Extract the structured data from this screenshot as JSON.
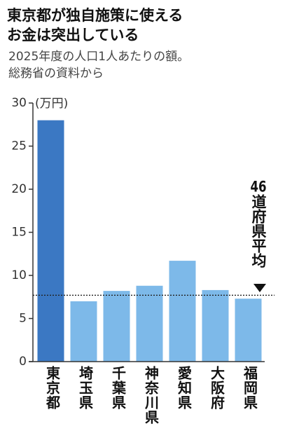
{
  "chart_data": {
    "type": "bar",
    "title": [
      "東京都が独自施策に使える",
      "お金は突出している"
    ],
    "subtitle": [
      "2025年度の人口1人あたりの額。",
      "総務省の資料から"
    ],
    "y_label": "(万円)",
    "categories": [
      "東京都",
      "埼玉県",
      "千葉県",
      "神奈川県",
      "愛知県",
      "大阪府",
      "福岡県"
    ],
    "values": [
      28,
      7.0,
      8.2,
      8.8,
      11.7,
      8.3,
      7.3
    ],
    "colors": [
      "#3b78c3",
      "#7db9e9",
      "#7db9e9",
      "#7db9e9",
      "#7db9e9",
      "#7db9e9",
      "#7db9e9"
    ],
    "ylim": [
      0,
      30
    ],
    "yticks": [
      0,
      5,
      10,
      15,
      20,
      25,
      30
    ],
    "reference_line": {
      "value": 7.7,
      "label": "46道府県平均"
    }
  }
}
